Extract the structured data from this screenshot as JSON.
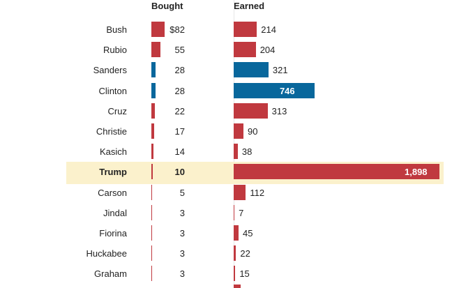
{
  "chart_data": {
    "type": "bar",
    "headers": {
      "bought": "Bought",
      "earned": "Earned"
    },
    "currency_symbol": "$",
    "highlight": "Trump",
    "colors": {
      "red": "#c0393f",
      "blue": "#08679c",
      "highlight_bg": "#fbf1cc"
    },
    "rows": [
      {
        "name": "Bush",
        "bought": 82,
        "earned": 214,
        "bought_label": "82",
        "earned_label": "214",
        "party": "R"
      },
      {
        "name": "Rubio",
        "bought": 55,
        "earned": 204,
        "bought_label": "55",
        "earned_label": "204",
        "party": "R"
      },
      {
        "name": "Sanders",
        "bought": 28,
        "earned": 321,
        "bought_label": "28",
        "earned_label": "321",
        "party": "D"
      },
      {
        "name": "Clinton",
        "bought": 28,
        "earned": 746,
        "bought_label": "28",
        "earned_label": "746",
        "party": "D"
      },
      {
        "name": "Cruz",
        "bought": 22,
        "earned": 313,
        "bought_label": "22",
        "earned_label": "313",
        "party": "R"
      },
      {
        "name": "Christie",
        "bought": 17,
        "earned": 90,
        "bought_label": "17",
        "earned_label": "90",
        "party": "R"
      },
      {
        "name": "Kasich",
        "bought": 14,
        "earned": 38,
        "bought_label": "14",
        "earned_label": "38",
        "party": "R"
      },
      {
        "name": "Trump",
        "bought": 10,
        "earned": 1898,
        "bought_label": "10",
        "earned_label": "1,898",
        "party": "R"
      },
      {
        "name": "Carson",
        "bought": 5,
        "earned": 112,
        "bought_label": "5",
        "earned_label": "112",
        "party": "R"
      },
      {
        "name": "Jindal",
        "bought": 3,
        "earned": 7,
        "bought_label": "3",
        "earned_label": "7",
        "party": "R"
      },
      {
        "name": "Fiorina",
        "bought": 3,
        "earned": 45,
        "bought_label": "3",
        "earned_label": "45",
        "party": "R"
      },
      {
        "name": "Huckabee",
        "bought": 3,
        "earned": 22,
        "bought_label": "3",
        "earned_label": "22",
        "party": "R"
      },
      {
        "name": "Graham",
        "bought": 3,
        "earned": 15,
        "bought_label": "3",
        "earned_label": "15",
        "party": "R"
      }
    ]
  }
}
